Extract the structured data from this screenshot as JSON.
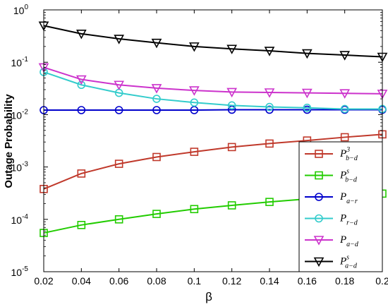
{
  "chart_data": {
    "type": "line",
    "xlabel": "β",
    "ylabel": "Outage Probability",
    "xlim": [
      0.02,
      0.2
    ],
    "ylim": [
      1e-05,
      1
    ],
    "yscale": "log",
    "x_ticks": [
      "0.02",
      "0.04",
      "0.06",
      "0.08",
      "0.1",
      "0.12",
      "0.14",
      "0.16",
      "0.18",
      "0.2"
    ],
    "y_ticks": [
      {
        "base": "10",
        "exp": "0"
      },
      {
        "base": "10",
        "exp": "-1"
      },
      {
        "base": "10",
        "exp": "-2"
      },
      {
        "base": "10",
        "exp": "-3"
      },
      {
        "base": "10",
        "exp": "-4"
      },
      {
        "base": "10",
        "exp": "-5"
      }
    ],
    "grid": false,
    "legend_position": "bottom-right",
    "x": [
      0.02,
      0.04,
      0.06,
      0.08,
      0.1,
      0.12,
      0.14,
      0.16,
      0.18,
      0.2
    ],
    "series": [
      {
        "name": "P",
        "sup": "3",
        "sub": "b−d",
        "color": "#c0392b",
        "marker": "square",
        "values": [
          0.00038,
          0.00075,
          0.00115,
          0.00155,
          0.00195,
          0.0024,
          0.0028,
          0.0032,
          0.0037,
          0.0042
        ]
      },
      {
        "name": "P",
        "sup": "s",
        "sub": "b−d",
        "color": "#22cc00",
        "marker": "square",
        "values": [
          5.5e-05,
          7.8e-05,
          0.0001,
          0.000127,
          0.000157,
          0.000185,
          0.000215,
          0.000245,
          0.000275,
          0.00031
        ]
      },
      {
        "name": "P",
        "sup": "",
        "sub": "a−r",
        "color": "#0000cc",
        "marker": "circle",
        "values": [
          0.0122,
          0.0122,
          0.0122,
          0.0122,
          0.0122,
          0.0124,
          0.0124,
          0.0124,
          0.0124,
          0.0124
        ]
      },
      {
        "name": "P",
        "sup": "",
        "sub": "r−d",
        "color": "#33cccc",
        "marker": "circle",
        "values": [
          0.065,
          0.037,
          0.026,
          0.02,
          0.017,
          0.015,
          0.014,
          0.0135,
          0.0128,
          0.0128
        ]
      },
      {
        "name": "P",
        "sup": "",
        "sub": "a−d",
        "color": "#cc33cc",
        "marker": "triangle-down",
        "values": [
          0.08,
          0.047,
          0.037,
          0.032,
          0.029,
          0.027,
          0.0265,
          0.026,
          0.0255,
          0.025
        ]
      },
      {
        "name": "P",
        "sup": "s",
        "sub": "a−d",
        "color": "#000000",
        "marker": "triangle-down",
        "values": [
          0.5,
          0.35,
          0.28,
          0.235,
          0.2,
          0.18,
          0.165,
          0.148,
          0.137,
          0.127
        ]
      }
    ]
  }
}
